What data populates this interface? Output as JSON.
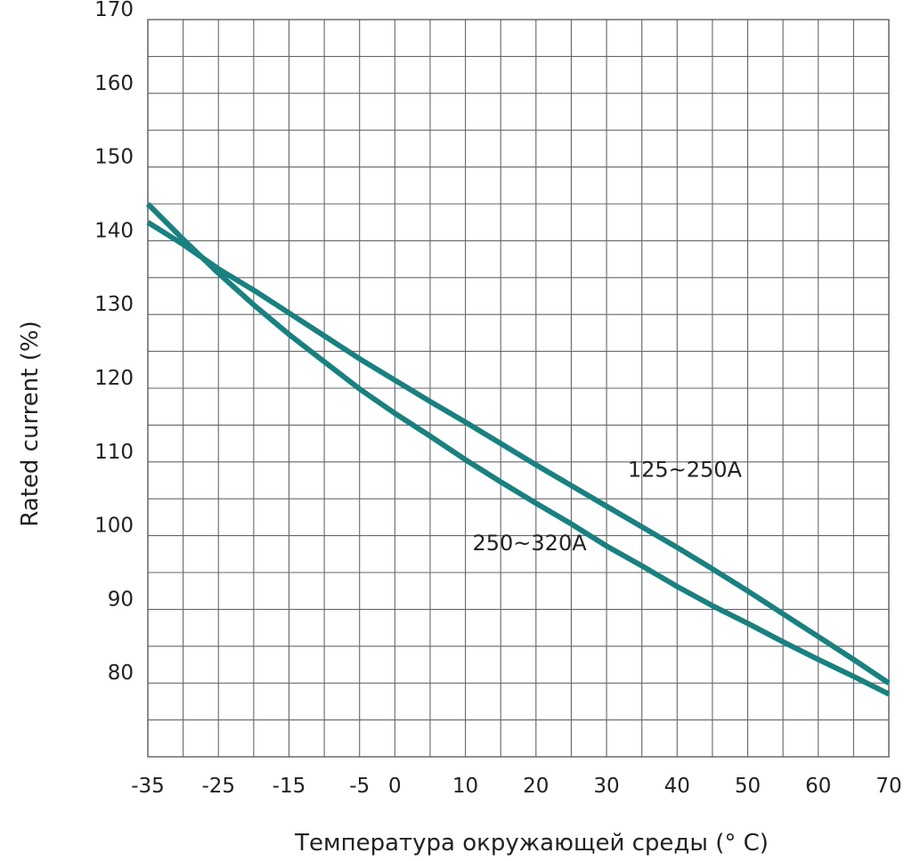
{
  "chart_data": {
    "type": "line",
    "title": "",
    "xlabel": "Температура окружающей среды (° C)",
    "ylabel": "Rated current (%)",
    "xlim": [
      -35,
      70
    ],
    "ylim": [
      70,
      170
    ],
    "x_ticks": [
      -35,
      -25,
      -15,
      -5,
      0,
      10,
      20,
      30,
      40,
      50,
      60,
      70
    ],
    "x_tick_labels": [
      "-35",
      "-25",
      "-15",
      "-5",
      "0",
      "10",
      "20",
      "30",
      "40",
      "50",
      "60",
      "70"
    ],
    "y_ticks": [
      80,
      90,
      100,
      110,
      120,
      130,
      140,
      150,
      160,
      170
    ],
    "y_tick_labels": [
      "80",
      "90",
      "100",
      "110",
      "120",
      "130",
      "140",
      "150",
      "160",
      "170"
    ],
    "grid": true,
    "legend": "none",
    "line_color": "#1a8080",
    "series": [
      {
        "name": "125~250A",
        "label_anchor": [
          33,
          108
        ],
        "x": [
          -35,
          -30,
          -25,
          -20,
          -15,
          -10,
          -5,
          0,
          5,
          10,
          15,
          20,
          25,
          30,
          35,
          40,
          45,
          50,
          55,
          60,
          65,
          70
        ],
        "values": [
          142.5,
          139.5,
          136.2,
          133.3,
          130.2,
          127.1,
          124.0,
          121.1,
          118.2,
          115.4,
          112.5,
          109.6,
          106.8,
          104.0,
          101.2,
          98.4,
          95.5,
          92.5,
          89.4,
          86.3,
          83.2,
          80.0
        ]
      },
      {
        "name": "250~320A",
        "label_anchor": [
          11,
          98
        ],
        "x": [
          -35,
          -30,
          -25,
          -20,
          -15,
          -10,
          -5,
          0,
          5,
          10,
          15,
          20,
          25,
          30,
          35,
          40,
          45,
          50,
          55,
          60,
          65,
          70
        ],
        "values": [
          145.0,
          140.2,
          135.6,
          131.3,
          127.3,
          123.6,
          119.9,
          116.6,
          113.5,
          110.3,
          107.3,
          104.4,
          101.6,
          98.6,
          95.9,
          93.1,
          90.5,
          88.1,
          85.6,
          83.2,
          80.9,
          78.5
        ]
      }
    ]
  }
}
